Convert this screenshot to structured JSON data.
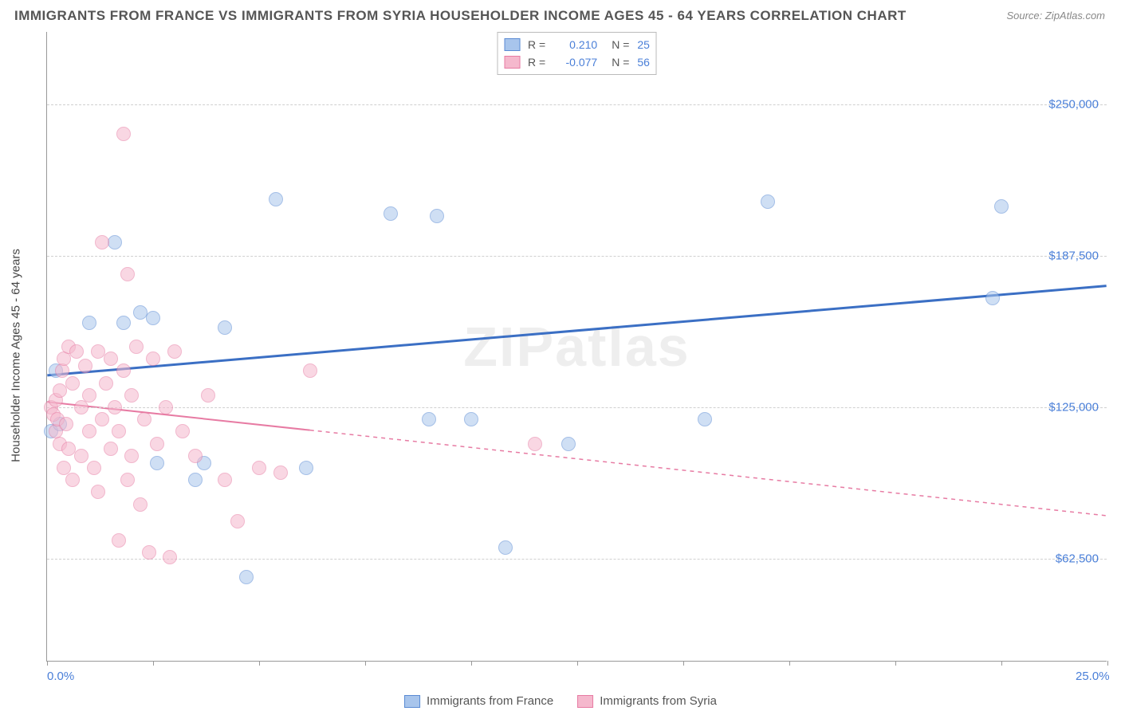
{
  "title": "IMMIGRANTS FROM FRANCE VS IMMIGRANTS FROM SYRIA HOUSEHOLDER INCOME AGES 45 - 64 YEARS CORRELATION CHART",
  "source": "Source: ZipAtlas.com",
  "watermark": "ZIPatlas",
  "yaxis_title": "Householder Income Ages 45 - 64 years",
  "chart": {
    "type": "scatter",
    "xlim": [
      0,
      25
    ],
    "ylim": [
      20000,
      280000
    ],
    "x_ticks": [
      0,
      2.5,
      5,
      7.5,
      10,
      12.5,
      15,
      17.5,
      20,
      22.5,
      25
    ],
    "x_tick_labels": {
      "0": "0.0%",
      "25": "25.0%"
    },
    "y_gridlines": [
      62500,
      125000,
      187500,
      250000
    ],
    "y_tick_labels": {
      "62500": "$62,500",
      "125000": "$125,000",
      "187500": "$187,500",
      "250000": "$250,000"
    },
    "background_color": "#ffffff",
    "grid_color": "#d0d0d0",
    "axis_color": "#999999",
    "tick_label_color": "#4a7fd8",
    "point_radius": 9
  },
  "series": [
    {
      "name": "Immigrants from France",
      "fill_color": "#a8c5ec",
      "stroke_color": "#5b8bd4",
      "fill_opacity": 0.55,
      "R_label": "R =",
      "R": "0.210",
      "N_label": "N =",
      "N": "25",
      "trend": {
        "x1": 0,
        "y1": 138000,
        "x2": 25,
        "y2": 175000,
        "solid_until_x": 25,
        "line_color": "#3b6fc4",
        "line_width": 3
      },
      "points": [
        {
          "x": 0.1,
          "y": 115000
        },
        {
          "x": 0.2,
          "y": 140000
        },
        {
          "x": 0.3,
          "y": 118000
        },
        {
          "x": 1.0,
          "y": 160000
        },
        {
          "x": 1.6,
          "y": 193000
        },
        {
          "x": 1.8,
          "y": 160000
        },
        {
          "x": 2.2,
          "y": 164000
        },
        {
          "x": 2.5,
          "y": 162000
        },
        {
          "x": 2.6,
          "y": 102000
        },
        {
          "x": 3.5,
          "y": 95000
        },
        {
          "x": 3.7,
          "y": 102000
        },
        {
          "x": 4.2,
          "y": 158000
        },
        {
          "x": 4.7,
          "y": 55000
        },
        {
          "x": 5.4,
          "y": 211000
        },
        {
          "x": 6.1,
          "y": 100000
        },
        {
          "x": 8.1,
          "y": 205000
        },
        {
          "x": 9.2,
          "y": 204000
        },
        {
          "x": 9.0,
          "y": 120000
        },
        {
          "x": 10.0,
          "y": 120000
        },
        {
          "x": 10.8,
          "y": 67000
        },
        {
          "x": 12.3,
          "y": 110000
        },
        {
          "x": 15.5,
          "y": 120000
        },
        {
          "x": 17.0,
          "y": 210000
        },
        {
          "x": 22.5,
          "y": 208000
        },
        {
          "x": 22.3,
          "y": 170000
        }
      ]
    },
    {
      "name": "Immigrants from Syria",
      "fill_color": "#f5b8cd",
      "stroke_color": "#e77ba3",
      "fill_opacity": 0.55,
      "R_label": "R =",
      "R": "-0.077",
      "N_label": "N =",
      "N": "56",
      "trend": {
        "x1": 0,
        "y1": 127000,
        "x2": 25,
        "y2": 80000,
        "solid_until_x": 6.2,
        "line_color": "#e77ba3",
        "line_width": 2
      },
      "points": [
        {
          "x": 0.1,
          "y": 125000
        },
        {
          "x": 0.15,
          "y": 122000
        },
        {
          "x": 0.2,
          "y": 128000
        },
        {
          "x": 0.2,
          "y": 115000
        },
        {
          "x": 0.25,
          "y": 120000
        },
        {
          "x": 0.3,
          "y": 132000
        },
        {
          "x": 0.3,
          "y": 110000
        },
        {
          "x": 0.35,
          "y": 140000
        },
        {
          "x": 0.4,
          "y": 145000
        },
        {
          "x": 0.4,
          "y": 100000
        },
        {
          "x": 0.45,
          "y": 118000
        },
        {
          "x": 0.5,
          "y": 150000
        },
        {
          "x": 0.5,
          "y": 108000
        },
        {
          "x": 0.6,
          "y": 135000
        },
        {
          "x": 0.6,
          "y": 95000
        },
        {
          "x": 0.7,
          "y": 148000
        },
        {
          "x": 0.8,
          "y": 125000
        },
        {
          "x": 0.8,
          "y": 105000
        },
        {
          "x": 0.9,
          "y": 142000
        },
        {
          "x": 1.0,
          "y": 115000
        },
        {
          "x": 1.0,
          "y": 130000
        },
        {
          "x": 1.1,
          "y": 100000
        },
        {
          "x": 1.2,
          "y": 148000
        },
        {
          "x": 1.2,
          "y": 90000
        },
        {
          "x": 1.3,
          "y": 120000
        },
        {
          "x": 1.3,
          "y": 193000
        },
        {
          "x": 1.4,
          "y": 135000
        },
        {
          "x": 1.5,
          "y": 108000
        },
        {
          "x": 1.5,
          "y": 145000
        },
        {
          "x": 1.6,
          "y": 125000
        },
        {
          "x": 1.7,
          "y": 70000
        },
        {
          "x": 1.7,
          "y": 115000
        },
        {
          "x": 1.8,
          "y": 238000
        },
        {
          "x": 1.8,
          "y": 140000
        },
        {
          "x": 1.9,
          "y": 95000
        },
        {
          "x": 1.9,
          "y": 180000
        },
        {
          "x": 2.0,
          "y": 130000
        },
        {
          "x": 2.0,
          "y": 105000
        },
        {
          "x": 2.1,
          "y": 150000
        },
        {
          "x": 2.2,
          "y": 85000
        },
        {
          "x": 2.3,
          "y": 120000
        },
        {
          "x": 2.4,
          "y": 65000
        },
        {
          "x": 2.5,
          "y": 145000
        },
        {
          "x": 2.6,
          "y": 110000
        },
        {
          "x": 2.8,
          "y": 125000
        },
        {
          "x": 2.9,
          "y": 63000
        },
        {
          "x": 3.0,
          "y": 148000
        },
        {
          "x": 3.2,
          "y": 115000
        },
        {
          "x": 3.5,
          "y": 105000
        },
        {
          "x": 3.8,
          "y": 130000
        },
        {
          "x": 4.2,
          "y": 95000
        },
        {
          "x": 4.5,
          "y": 78000
        },
        {
          "x": 5.0,
          "y": 100000
        },
        {
          "x": 5.5,
          "y": 98000
        },
        {
          "x": 6.2,
          "y": 140000
        },
        {
          "x": 11.5,
          "y": 110000
        }
      ]
    }
  ],
  "legend_bottom": [
    {
      "label": "Immigrants from France",
      "fill": "#a8c5ec",
      "stroke": "#5b8bd4"
    },
    {
      "label": "Immigrants from Syria",
      "fill": "#f5b8cd",
      "stroke": "#e77ba3"
    }
  ]
}
